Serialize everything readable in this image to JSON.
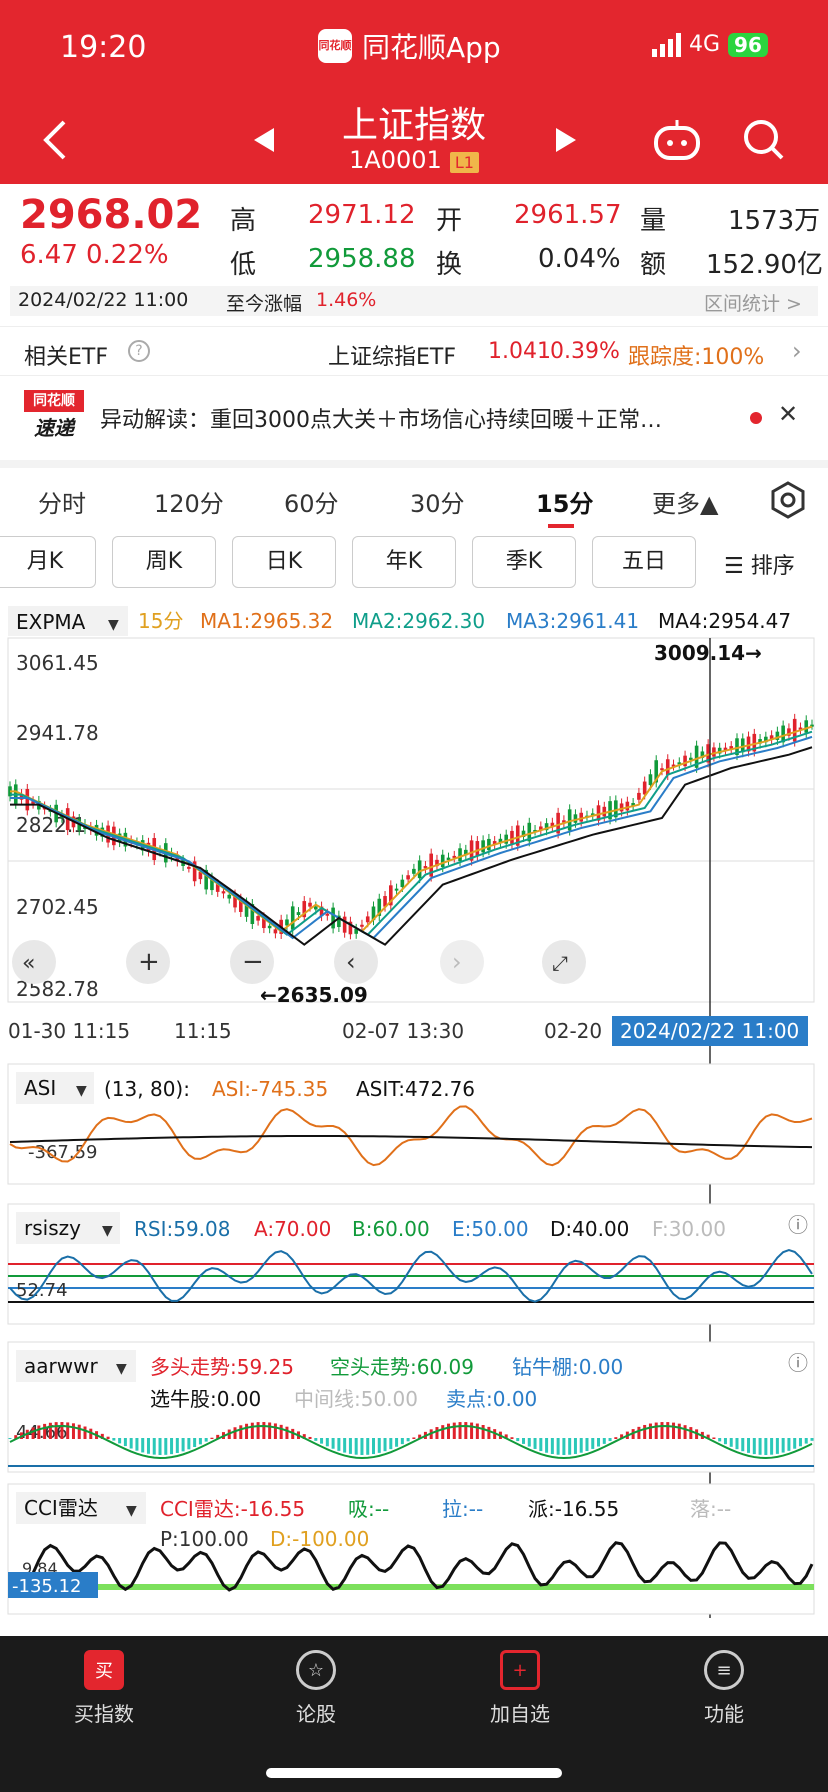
{
  "status": {
    "time": "19:20",
    "app": "同花顺App",
    "logo": "同花顺",
    "network": "4G",
    "battery": "96"
  },
  "header": {
    "title": "上证指数",
    "code": "1A0001",
    "level": "L1"
  },
  "quote": {
    "price": "2968.02",
    "change": "6.47",
    "pct": "0.22%",
    "high_l": "高",
    "high": "2971.12",
    "open_l": "开",
    "open": "2961.57",
    "vol_l": "量",
    "vol": "1573万",
    "low_l": "低",
    "low": "2958.88",
    "turn_l": "换",
    "turn": "0.04%",
    "amt_l": "额",
    "amt": "152.90亿",
    "date": "2024/02/22 11:00",
    "since_l": "至今涨幅",
    "since": "1.46%",
    "range": "区间统计 >"
  },
  "etf": {
    "label": "相关ETF",
    "name": "上证综指ETF",
    "price": "1.041",
    "pct": "0.39%",
    "track": "跟踪度:100%"
  },
  "news": {
    "brand1": "同花顺",
    "brand2": "速递",
    "text": "异动解读：重回3000点大关＋市场信心持续回暖＋正常…"
  },
  "tabs": [
    "分时",
    "120分",
    "60分",
    "30分",
    "15分",
    "更多▲"
  ],
  "ktabs": [
    "月K",
    "周K",
    "日K",
    "年K",
    "季K",
    "五日"
  ],
  "sort": "排序",
  "main": {
    "ind": "EXPMA",
    "period": "15分",
    "ma1": "MA1:2965.32",
    "ma2": "MA2:2962.30",
    "ma3": "MA3:2961.41",
    "ma4": "MA4:2954.47",
    "y1": "3061.45",
    "y2": "2941.78",
    "y3": "2822.1",
    "y4": "2702.45",
    "y5": "2582.78",
    "hi": "3009.14→",
    "lo": "←2635.09",
    "x1": "01-30 11:15",
    "x2": "11:15",
    "x3": "02-07 13:30",
    "x4": "02-20",
    "cursor": "2024/02/22 11:00"
  },
  "asi": {
    "name": "ASI",
    "params": "(13, 80):",
    "v1": "ASI:-745.35",
    "v2": "ASIT:472.76",
    "y": "-367.59"
  },
  "rsi": {
    "name": "rsiszy",
    "v1": "RSI:59.08",
    "v2": "A:70.00",
    "v3": "B:60.00",
    "v4": "E:50.00",
    "v5": "D:40.00",
    "v6": "F:30.00",
    "y": "52.74"
  },
  "aar": {
    "name": "aarwwr",
    "v1": "多头走势:59.25",
    "v2": "空头走势:60.09",
    "v3": "钻牛棚:0.00",
    "v4": "选牛股:0.00",
    "v5": "中间线:50.00",
    "v6": "卖点:0.00",
    "y": "44.66"
  },
  "cci": {
    "name": "CCI雷达",
    "v1": "CCI雷达:-16.55",
    "v2": "吸:--",
    "v3": "拉:--",
    "v4": "派:-16.55",
    "v5": "落:--",
    "v6": "P:100.00",
    "v7": "D:-100.00",
    "y": "9.84",
    "tag": "-135.12"
  },
  "nav": [
    {
      "label": "买指数",
      "icon": "买"
    },
    {
      "label": "论股",
      "icon": "☆"
    },
    {
      "label": "加自选",
      "icon": "+"
    },
    {
      "label": "功能",
      "icon": "≡"
    }
  ],
  "colors": {
    "red": "#e3262e",
    "green": "#119a3a",
    "orange": "#e0701a",
    "teal": "#0f9e8a",
    "blue": "#2a7dc8"
  }
}
